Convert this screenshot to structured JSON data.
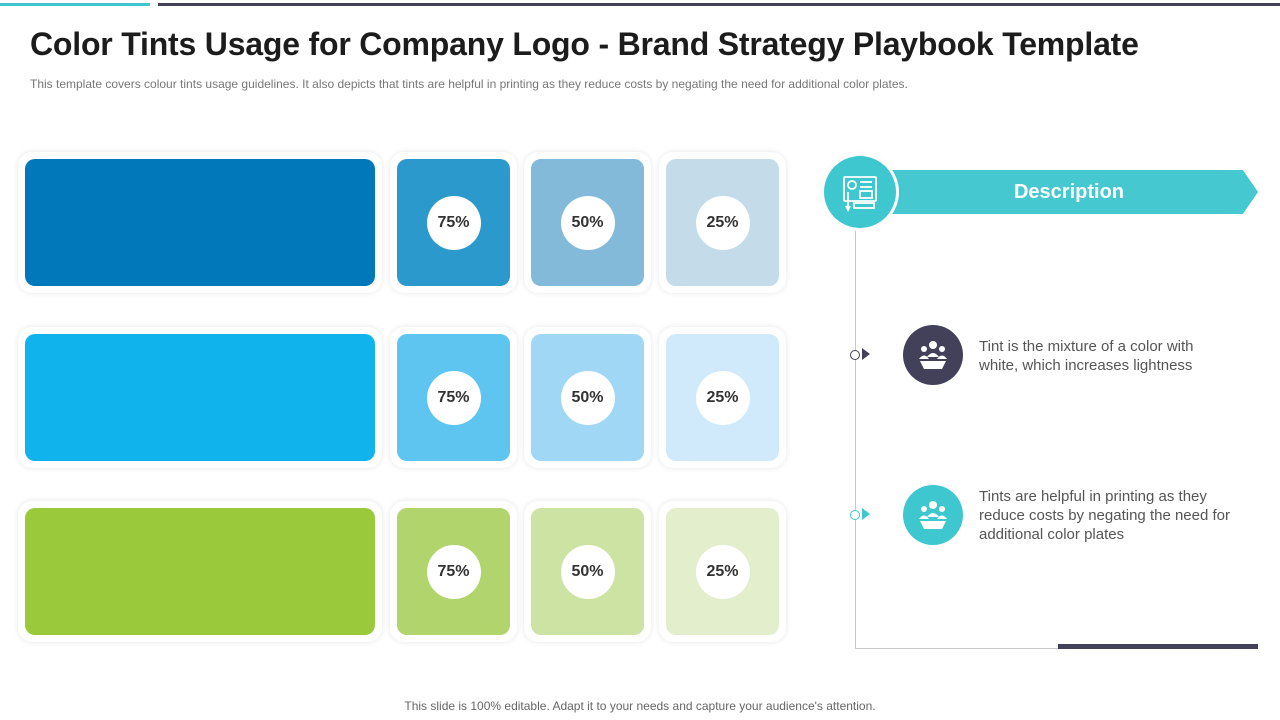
{
  "title": "Color Tints Usage for Company Logo - Brand Strategy Playbook Template",
  "subtitle": "This template covers  colour tints usage guidelines.  It also depicts that tints are helpful  in printing  as they reduce costs by negating  the need for additional color plates.",
  "rows": [
    {
      "base_color": "#0078b9",
      "tints": [
        {
          "label": "75%",
          "color": "#2b99cb"
        },
        {
          "label": "50%",
          "color": "#84bad9"
        },
        {
          "label": "25%",
          "color": "#c4dbea"
        }
      ]
    },
    {
      "base_color": "#10b3ec",
      "tints": [
        {
          "label": "75%",
          "color": "#5ec4f0"
        },
        {
          "label": "50%",
          "color": "#9fd7f5"
        },
        {
          "label": "25%",
          "color": "#d0eafb"
        }
      ]
    },
    {
      "base_color": "#9aca3c",
      "tints": [
        {
          "label": "75%",
          "color": "#b2d46c"
        },
        {
          "label": "50%",
          "color": "#cde3a4"
        },
        {
          "label": "25%",
          "color": "#e3eecd"
        }
      ]
    }
  ],
  "description": {
    "heading": "Description",
    "heading_icon": "design-board-icon",
    "points": [
      {
        "text": "Tint  is the mixture  of a color with white,   which increases lightness",
        "icon": "team-icon",
        "color": "#43415a"
      },
      {
        "text": "Tints  are helpful  in printing  as they reduce costs by negating the need for additional color plates",
        "icon": "team-icon",
        "color": "#3ec7cf"
      }
    ]
  },
  "footer": "This slide is 100% editable. Adapt it to your needs and capture your audience's attention."
}
